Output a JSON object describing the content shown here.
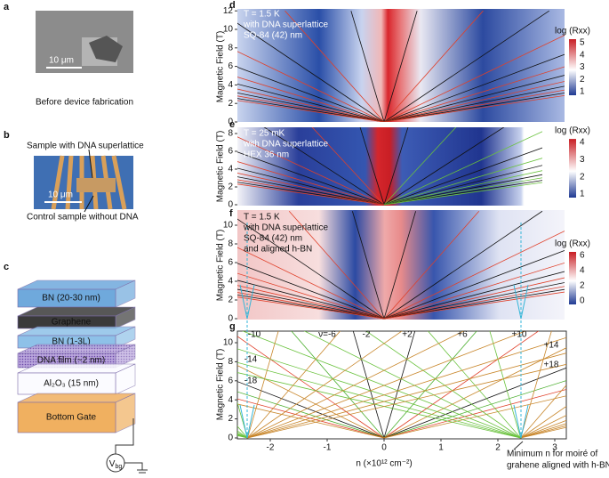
{
  "panels": {
    "a": {
      "label": "a",
      "scale_bar": "10 μm",
      "caption": "Before device fabrication"
    },
    "b": {
      "label": "b",
      "top_note": "Sample with DNA superlattice",
      "scale_bar": "10 μm",
      "bottom_note": "Control sample without DNA"
    },
    "c": {
      "label": "c",
      "layers": [
        "BN (20-30 nm)",
        "Graphene",
        "BN (1-3L)",
        "DNA film (~2 nm)",
        "Al₂O₃ (15 nm)",
        "Bottom Gate"
      ],
      "gate_symbol": "V",
      "gate_subscript": "bg"
    },
    "d": {
      "label": "d",
      "notes": [
        "T = 1.5 K",
        "with DNA superlattice",
        "SQ-84 (42) nm"
      ],
      "y_axis_label": "Magnetic Field (T)",
      "yticks": [
        0,
        2,
        4,
        6,
        8,
        10,
        12
      ],
      "colorbar_label": "log (Rxx)",
      "colorbar_ticks": [
        1,
        2,
        3,
        4,
        5
      ]
    },
    "e": {
      "label": "e",
      "notes": [
        "T = 25 mK",
        "with DNA superlattice",
        "HEX 36 nm"
      ],
      "y_axis_label": "Magnetic Field (T)",
      "yticks": [
        0,
        2,
        4,
        6,
        8
      ],
      "colorbar_label": "log (Rxx)",
      "colorbar_ticks": [
        1,
        2,
        3,
        4
      ]
    },
    "f": {
      "label": "f",
      "notes": [
        "T = 1.5 K",
        "with DNA superlattice",
        "SQ-84 (42) nm",
        "and aligned h-BN"
      ],
      "y_axis_label": "Magnetic Field (T)",
      "yticks": [
        0,
        2,
        4,
        6,
        8,
        10
      ],
      "colorbar_label": "log (Rxx)",
      "colorbar_ticks": [
        0,
        2,
        4,
        6
      ]
    },
    "g": {
      "label": "g",
      "y_axis_label": "Magnetic Field (T)",
      "yticks": [
        0,
        2,
        4,
        6,
        8,
        10
      ],
      "xticks": [
        -2,
        -1,
        0,
        1,
        2,
        3
      ],
      "x_axis_label": "n (×10¹² cm⁻²)",
      "filling_labels": [
        "-10",
        "ν=-6",
        "-2",
        "+2",
        "+6",
        "+10",
        "+14",
        "+18",
        "-14",
        "-18"
      ],
      "note": [
        "Minimum n for moiré of",
        "grahene aligned with h-BN"
      ]
    }
  }
}
